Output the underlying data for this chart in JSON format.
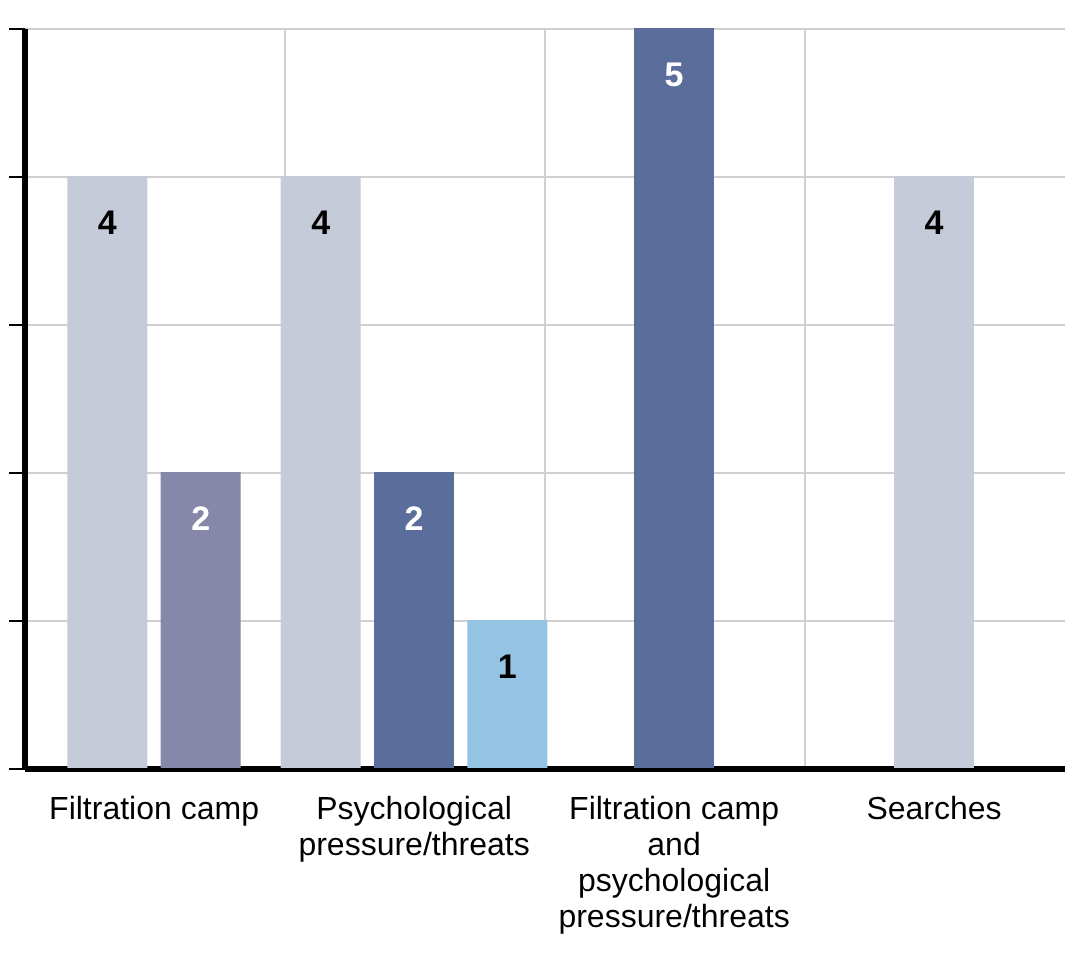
{
  "chart_data": {
    "type": "bar",
    "categories": [
      "Filtration camp",
      "Psychological pressure/threats",
      "Filtration camp and psychological pressure/threats",
      "Searches"
    ],
    "series": [
      {
        "color": "#c5cbd8",
        "values": [
          4,
          4,
          null,
          4
        ]
      },
      {
        "color": "#8787a9",
        "values": [
          2,
          null,
          null,
          null
        ]
      },
      {
        "color": "#5b6e9b",
        "values": [
          null,
          2,
          5,
          null
        ]
      },
      {
        "color": "#95c3e3",
        "values": [
          null,
          1,
          null,
          null
        ]
      }
    ],
    "ylim": [
      0,
      5
    ],
    "yticks": [
      {
        "value": 0,
        "label": null
      },
      {
        "value": 1,
        "label": null
      },
      {
        "value": 2,
        "label": null
      },
      {
        "value": 3,
        "label": null
      },
      {
        "value": 4,
        "label": null
      },
      {
        "value": 5,
        "label": null
      }
    ],
    "tick_labels": "x",
    "grid": true,
    "data_labels": true
  }
}
